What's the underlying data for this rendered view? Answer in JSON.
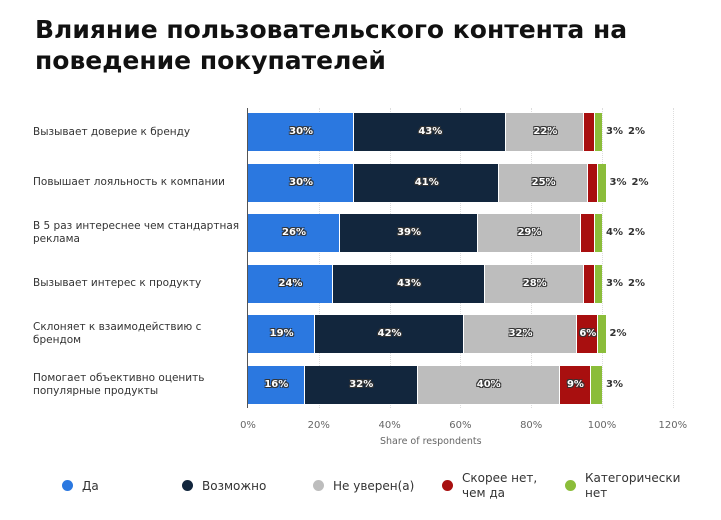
{
  "chart_data": {
    "type": "bar",
    "orientation": "horizontal",
    "stacked": true,
    "title": "Влияние пользовательского контента на поведение покупателей",
    "xlabel": "Share of respondents",
    "xlim": [
      0,
      120
    ],
    "xticks": [
      "0%",
      "20%",
      "40%",
      "60%",
      "80%",
      "100%",
      "120%"
    ],
    "grid": true,
    "legend_position": "bottom",
    "categories": [
      "Вызывает доверие к бренду",
      "Повышает лояльность к компании",
      "В 5 раз интереснее чем стандартная реклама",
      "Вызывает интерес к продукту",
      "Склоняет к взаимодействию с брендом",
      "Помогает объективно оценить популярные продукты"
    ],
    "series": [
      {
        "name": "Да",
        "color": "#2b78e0",
        "values": [
          30,
          30,
          26,
          24,
          19,
          16
        ]
      },
      {
        "name": "Возможно",
        "color": "#12263d",
        "values": [
          43,
          41,
          39,
          43,
          42,
          32
        ]
      },
      {
        "name": "Не уверен(а)",
        "color": "#bdbdbd",
        "values": [
          22,
          25,
          29,
          28,
          32,
          40
        ]
      },
      {
        "name": "Скорее нет, чем да",
        "color": "#a80f0f",
        "values": [
          3,
          3,
          4,
          3,
          6,
          9
        ]
      },
      {
        "name": "Категорически нет",
        "color": "#8bbd3a",
        "values": [
          2,
          2,
          2,
          2,
          2,
          3
        ]
      }
    ]
  }
}
